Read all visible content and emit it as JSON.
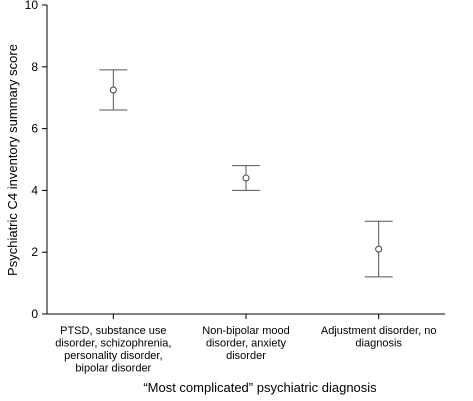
{
  "chart_data": {
    "type": "scatter",
    "title": "",
    "xlabel": "“Most complicated” psychiatric diagnosis",
    "ylabel": "Psychiatric C4 inventory summary score",
    "ylim": [
      0,
      10
    ],
    "yticks": [
      0,
      2,
      4,
      6,
      8,
      10
    ],
    "categories": [
      [
        "PTSD, substance use",
        "disorder, schizophrenia,",
        "personality disorder,",
        "bipolar disorder"
      ],
      [
        "Non-bipolar mood",
        "disorder, anxiety",
        "disorder"
      ],
      [
        "Adjustment disorder, no",
        "diagnosis"
      ]
    ],
    "values": [
      7.25,
      4.4,
      2.1
    ],
    "error_low": [
      6.6,
      4.0,
      1.2
    ],
    "error_high": [
      7.9,
      4.8,
      3.0
    ],
    "grid": false,
    "colors": {
      "axis": "#000000",
      "marker": "#444444"
    }
  }
}
